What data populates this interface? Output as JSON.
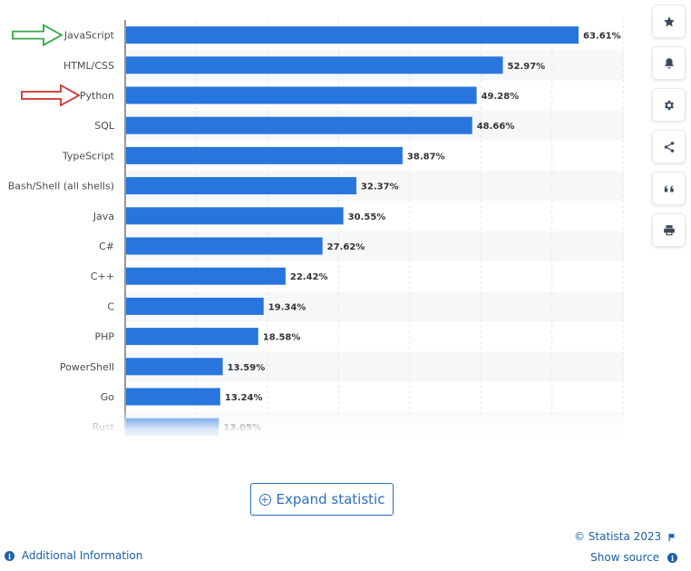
{
  "chart_data": {
    "type": "bar",
    "orientation": "horizontal",
    "categories": [
      "JavaScript",
      "HTML/CSS",
      "Python",
      "SQL",
      "TypeScript",
      "Bash/Shell (all shells)",
      "Java",
      "C#",
      "C++",
      "C",
      "PHP",
      "PowerShell",
      "Go",
      "Rust"
    ],
    "values": [
      63.61,
      52.97,
      49.28,
      48.66,
      38.87,
      32.37,
      30.55,
      27.62,
      22.42,
      19.34,
      18.58,
      13.59,
      13.24,
      13.05
    ],
    "value_labels": [
      "63.61%",
      "52.97%",
      "49.28%",
      "48.66%",
      "38.87%",
      "32.37%",
      "30.55%",
      "27.62%",
      "22.42%",
      "19.34%",
      "18.58%",
      "13.59%",
      "13.24%",
      "13.05%"
    ],
    "xlim": [
      0,
      70
    ],
    "bar_color": "#2876dd",
    "grid": true,
    "annotations": [
      {
        "type": "arrow",
        "color": "#3aa64a",
        "points_to": "JavaScript"
      },
      {
        "type": "arrow",
        "color": "#d0302a",
        "points_to": "Python"
      }
    ]
  },
  "sidebar": {
    "buttons": [
      {
        "icon": "star-icon"
      },
      {
        "icon": "bell-icon"
      },
      {
        "icon": "gear-icon"
      },
      {
        "icon": "share-icon"
      },
      {
        "icon": "quote-icon"
      },
      {
        "icon": "print-icon"
      }
    ]
  },
  "expand_label": "Expand statistic",
  "footer": {
    "copyright": "© Statista 2023",
    "additional_info": "Additional Information",
    "show_source": "Show source"
  }
}
